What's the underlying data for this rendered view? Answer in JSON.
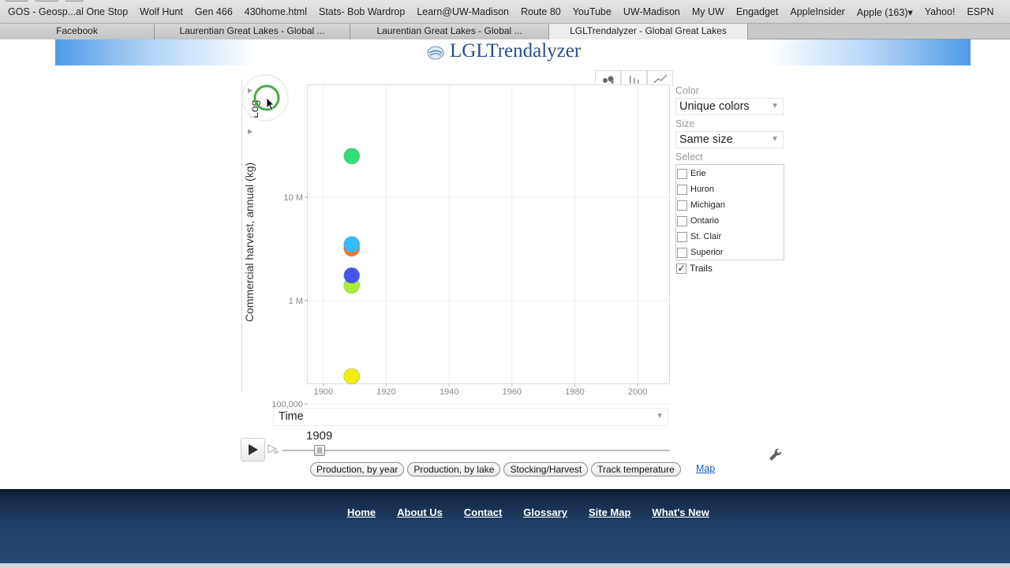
{
  "bookmarks": [
    "GOS - Geosp...al One Stop",
    "Wolf Hunt",
    "Gen 466",
    "430home.html",
    "Stats- Bob Wardrop",
    "Learn@UW-Madison",
    "Route 80",
    "YouTube",
    "UW-Madison",
    "My UW",
    "Engadget",
    "AppleInsider",
    "Apple (163)▾",
    "Yahoo!",
    "ESPN"
  ],
  "tabs": [
    {
      "label": "Facebook"
    },
    {
      "label": "Laurentian Great Lakes - Global ..."
    },
    {
      "label": "Laurentian Great Lakes - Global ..."
    },
    {
      "label": "LGLTrendalyzer - Global Great Lakes"
    }
  ],
  "site": {
    "title": "LGLTrendalyzer"
  },
  "chart": {
    "y_axis_label": "Commercial harvest, annual (kg)",
    "y_scale_label": "Log",
    "x_axis_label": "Time",
    "current_year": "1909"
  },
  "side": {
    "color_label": "Color",
    "color_value": "Unique colors",
    "size_label": "Size",
    "size_value": "Same size",
    "select_label": "Select",
    "lakes": [
      {
        "label": "Erie"
      },
      {
        "label": "Huron"
      },
      {
        "label": "Michigan"
      },
      {
        "label": "Ontario"
      },
      {
        "label": "St. Clair"
      },
      {
        "label": "Superior"
      }
    ],
    "trails_label": "Trails",
    "trails_checked": true
  },
  "controls": {
    "pills": [
      "Production, by year",
      "Production, by lake",
      "Stocking/Harvest",
      "Track temperature"
    ],
    "map_link": "Map"
  },
  "footer": {
    "links": [
      "Home",
      "About Us",
      "Contact",
      "Glossary",
      "Site Map",
      "What's New"
    ]
  },
  "chart_data": {
    "type": "scatter",
    "x_label": "Time",
    "y_label": "Commercial harvest, annual (kg)",
    "y_scale": "log",
    "xlim": [
      1895,
      2010
    ],
    "x_ticks": [
      1900,
      1920,
      1940,
      1960,
      1980,
      2000
    ],
    "y_ticks": [
      {
        "value": 100000,
        "label": "100,000"
      },
      {
        "value": 1000000,
        "label": "1 M"
      },
      {
        "value": 10000000,
        "label": "10 M"
      }
    ],
    "grid": true,
    "points": [
      {
        "x": 1909,
        "y": 25000000,
        "color": "#33dd77"
      },
      {
        "x": 1909,
        "y": 3200000,
        "color": "#ee7733"
      },
      {
        "x": 1909,
        "y": 3500000,
        "color": "#33bbff"
      },
      {
        "x": 1909,
        "y": 1400000,
        "color": "#aaee33"
      },
      {
        "x": 1909,
        "y": 1750000,
        "color": "#4455ee"
      },
      {
        "x": 1909,
        "y": 185000,
        "color": "#eeee11"
      }
    ]
  }
}
